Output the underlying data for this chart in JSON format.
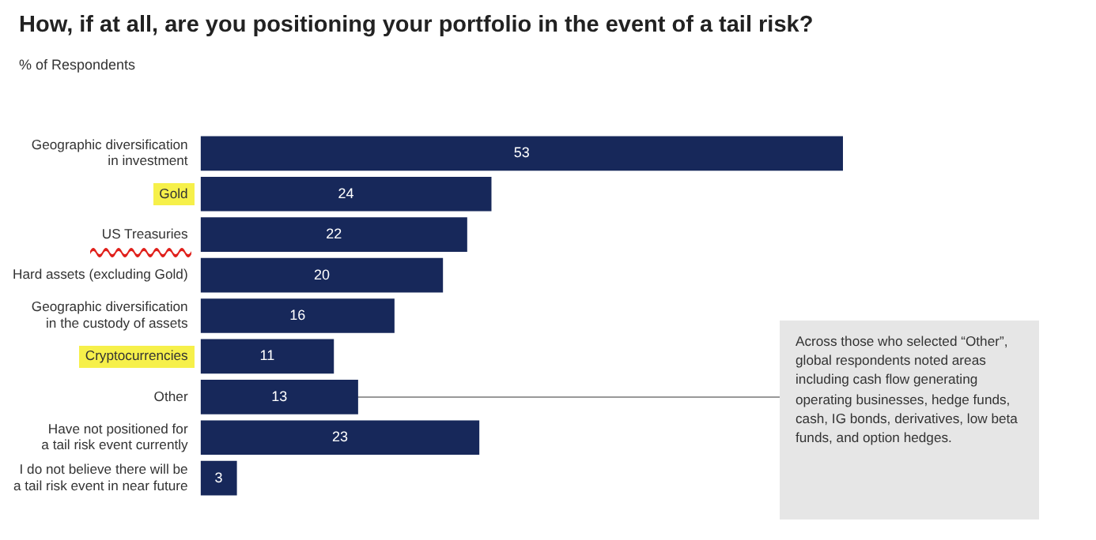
{
  "chart_data": {
    "type": "bar",
    "orientation": "horizontal",
    "title": "How, if at all, are you positioning your portfolio in the event of a tail risk?",
    "subtitle": "% of Respondents",
    "categories": [
      "Geographic diversification\nin investment",
      "Gold",
      "US Treasuries",
      "Hard assets (excluding Gold)",
      "Geographic diversification\nin the custody of assets",
      "Cryptocurrencies",
      "Other",
      "Have not positioned for\na tail risk event currently",
      "I do not believe there will be\na tail risk event in near future"
    ],
    "values": [
      53,
      24,
      22,
      20,
      16,
      11,
      13,
      23,
      3
    ],
    "color": "#17285a",
    "data_labels": true,
    "grid": false,
    "legend": false,
    "annotations": [
      "Across those who selected “Other”, global respondents noted areas including cash flow generating operating businesses, hedge funds, cash, IG bonds, derivatives, low beta funds, and option hedges."
    ]
  }
}
